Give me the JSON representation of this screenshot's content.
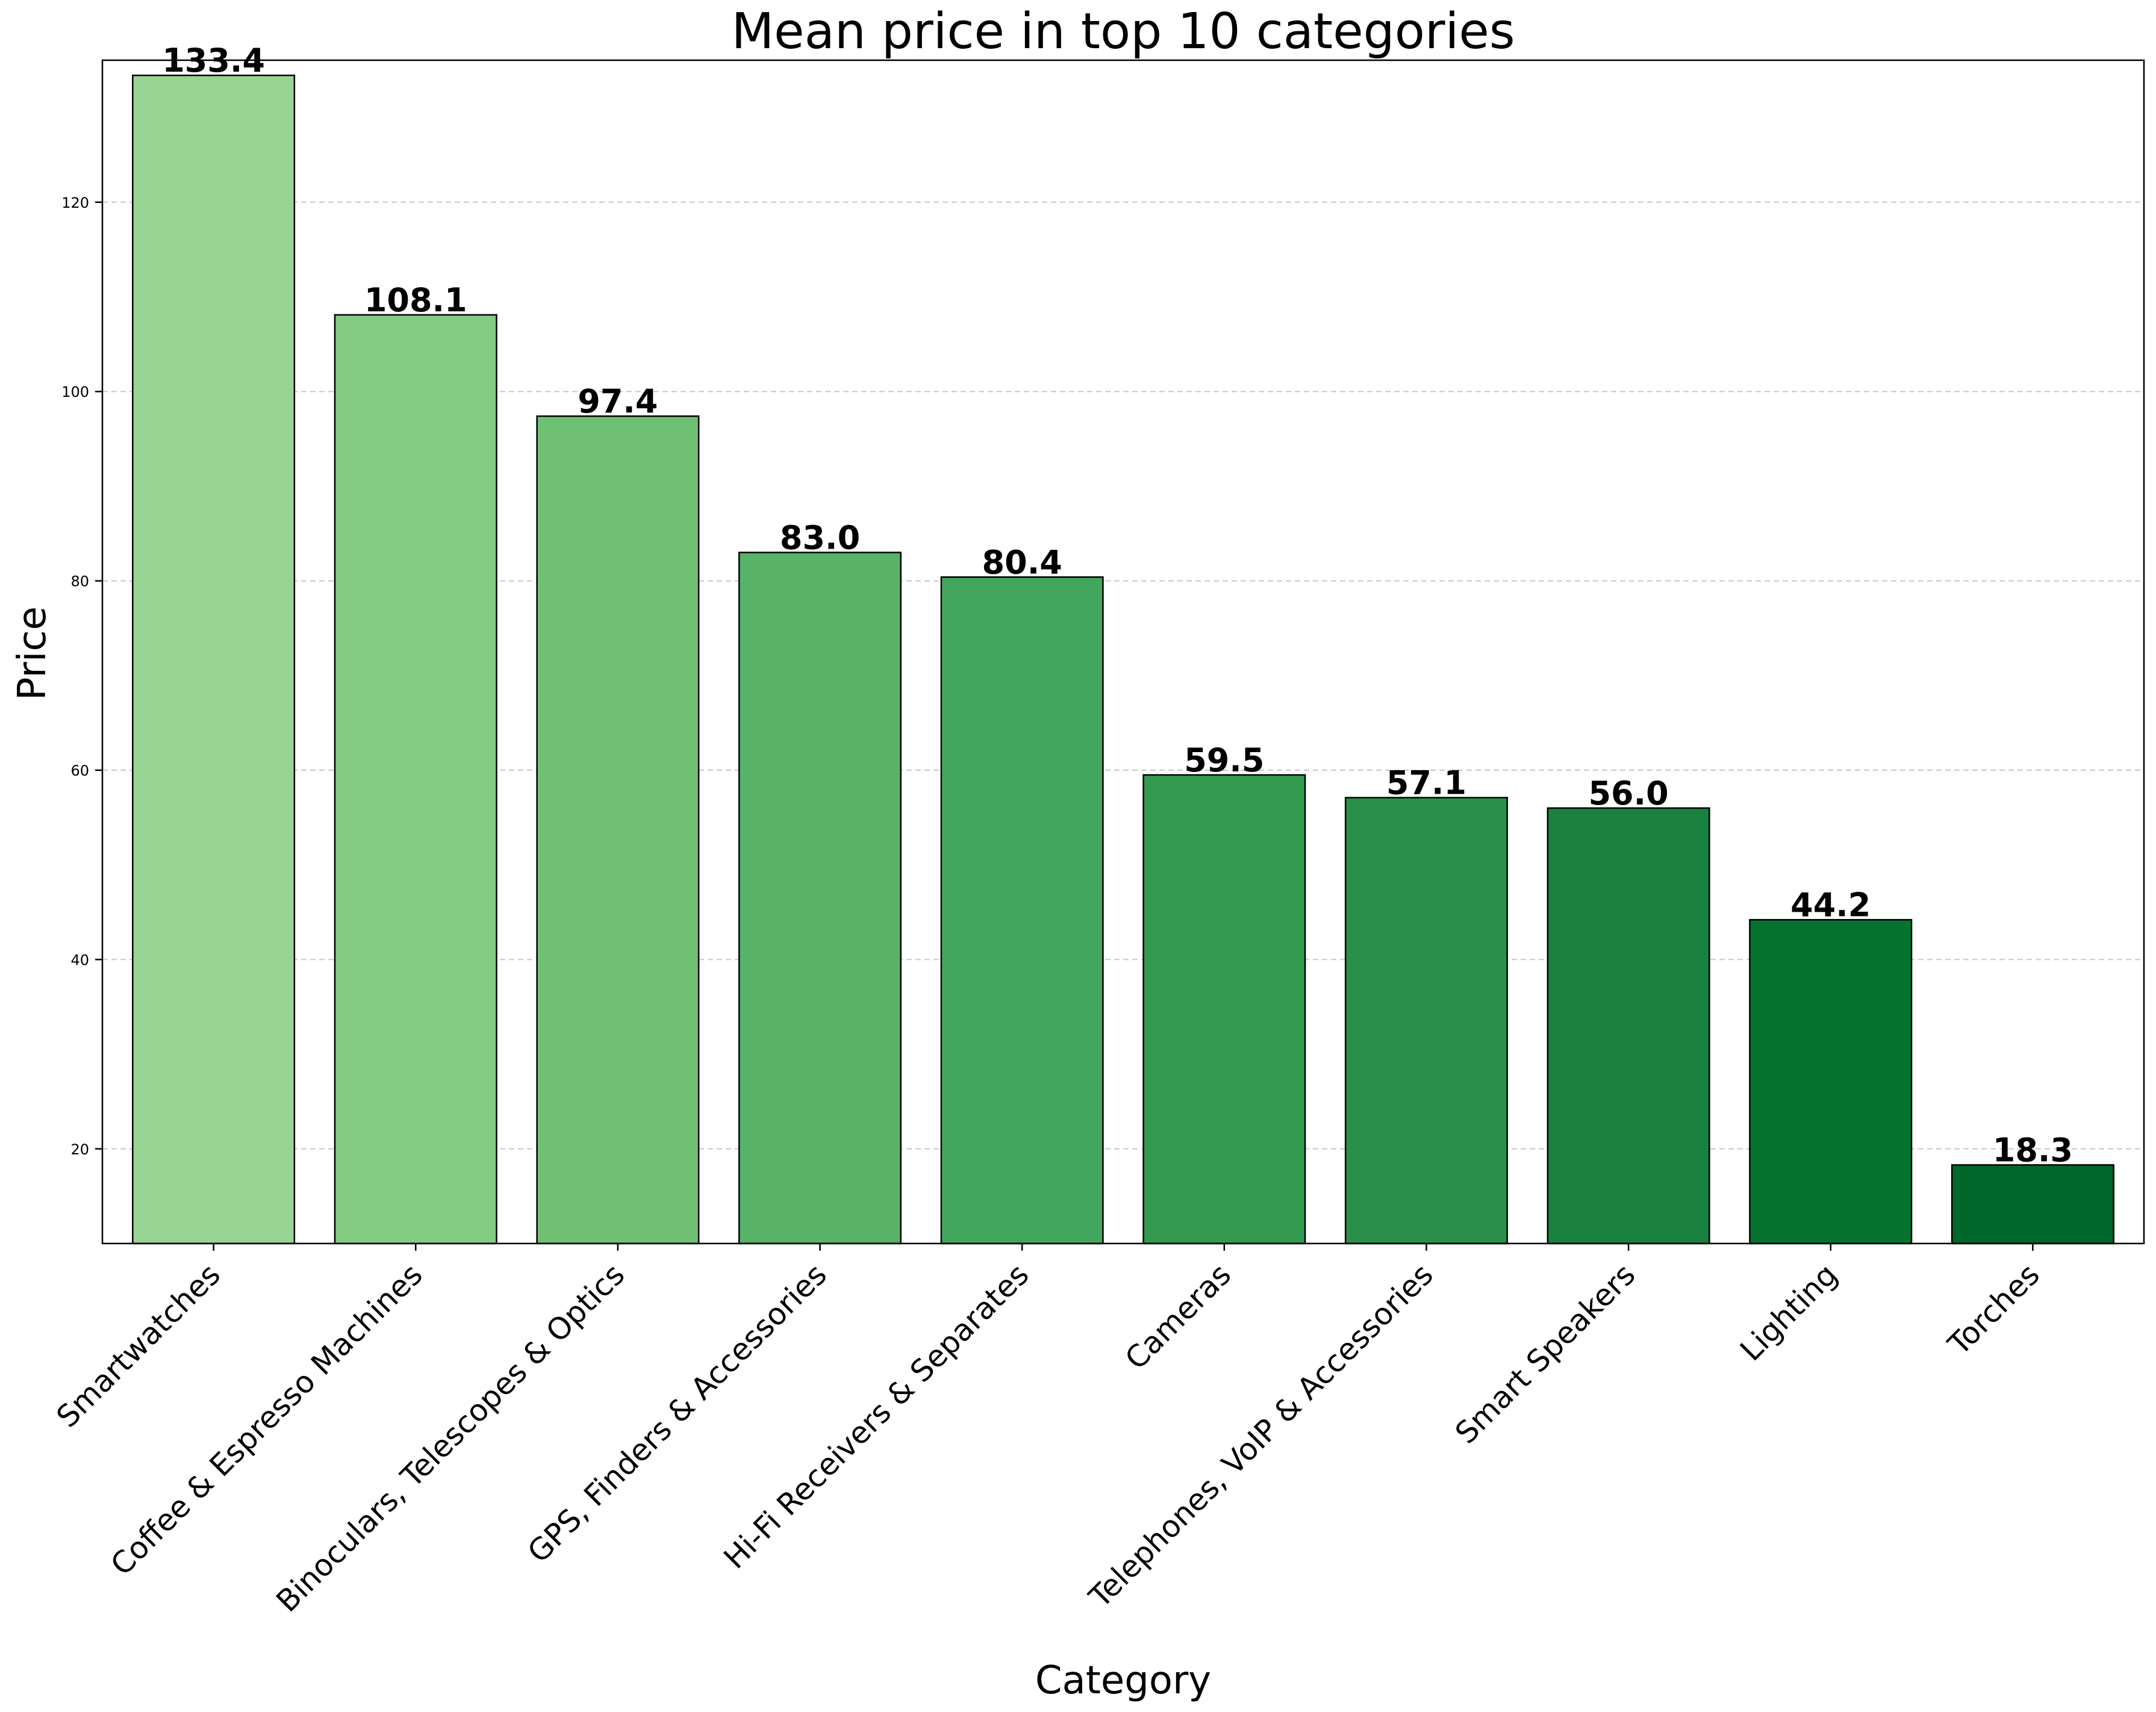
{
  "chart_data": {
    "type": "bar",
    "title": "Mean price in top 10 categories",
    "xlabel": "Category",
    "ylabel": "Price",
    "categories": [
      "Smartwatches",
      "Coffee & Espresso Machines",
      "Binoculars, Telescopes & Optics",
      "GPS, Finders & Accessories",
      "Hi-Fi Receivers & Separates",
      "Cameras",
      "Telephones, VoIP & Accessories",
      "Smart Speakers",
      "Lighting",
      "Torches"
    ],
    "values": [
      133.4,
      108.1,
      97.4,
      83.0,
      80.4,
      59.5,
      57.1,
      56.0,
      44.2,
      18.3
    ],
    "value_labels": [
      "133.4",
      "108.1",
      "97.4",
      "83.0",
      "80.4",
      "59.5",
      "57.1",
      "56.0",
      "44.2",
      "18.3"
    ],
    "ylim": [
      10,
      135
    ],
    "yticks": [
      20,
      40,
      60,
      80,
      100,
      120
    ],
    "ytick_labels": [
      "20",
      "40",
      "60",
      "80",
      "100",
      "120"
    ],
    "grid": "y-dashed",
    "colors": [
      "#98d594",
      "#84cb83",
      "#6fc072",
      "#58b368",
      "#42a65c",
      "#339a50",
      "#2a8f48",
      "#1a803f",
      "#077331",
      "#00672a"
    ],
    "edge_color": "#000000",
    "grid_color": "#c8c8c8"
  }
}
